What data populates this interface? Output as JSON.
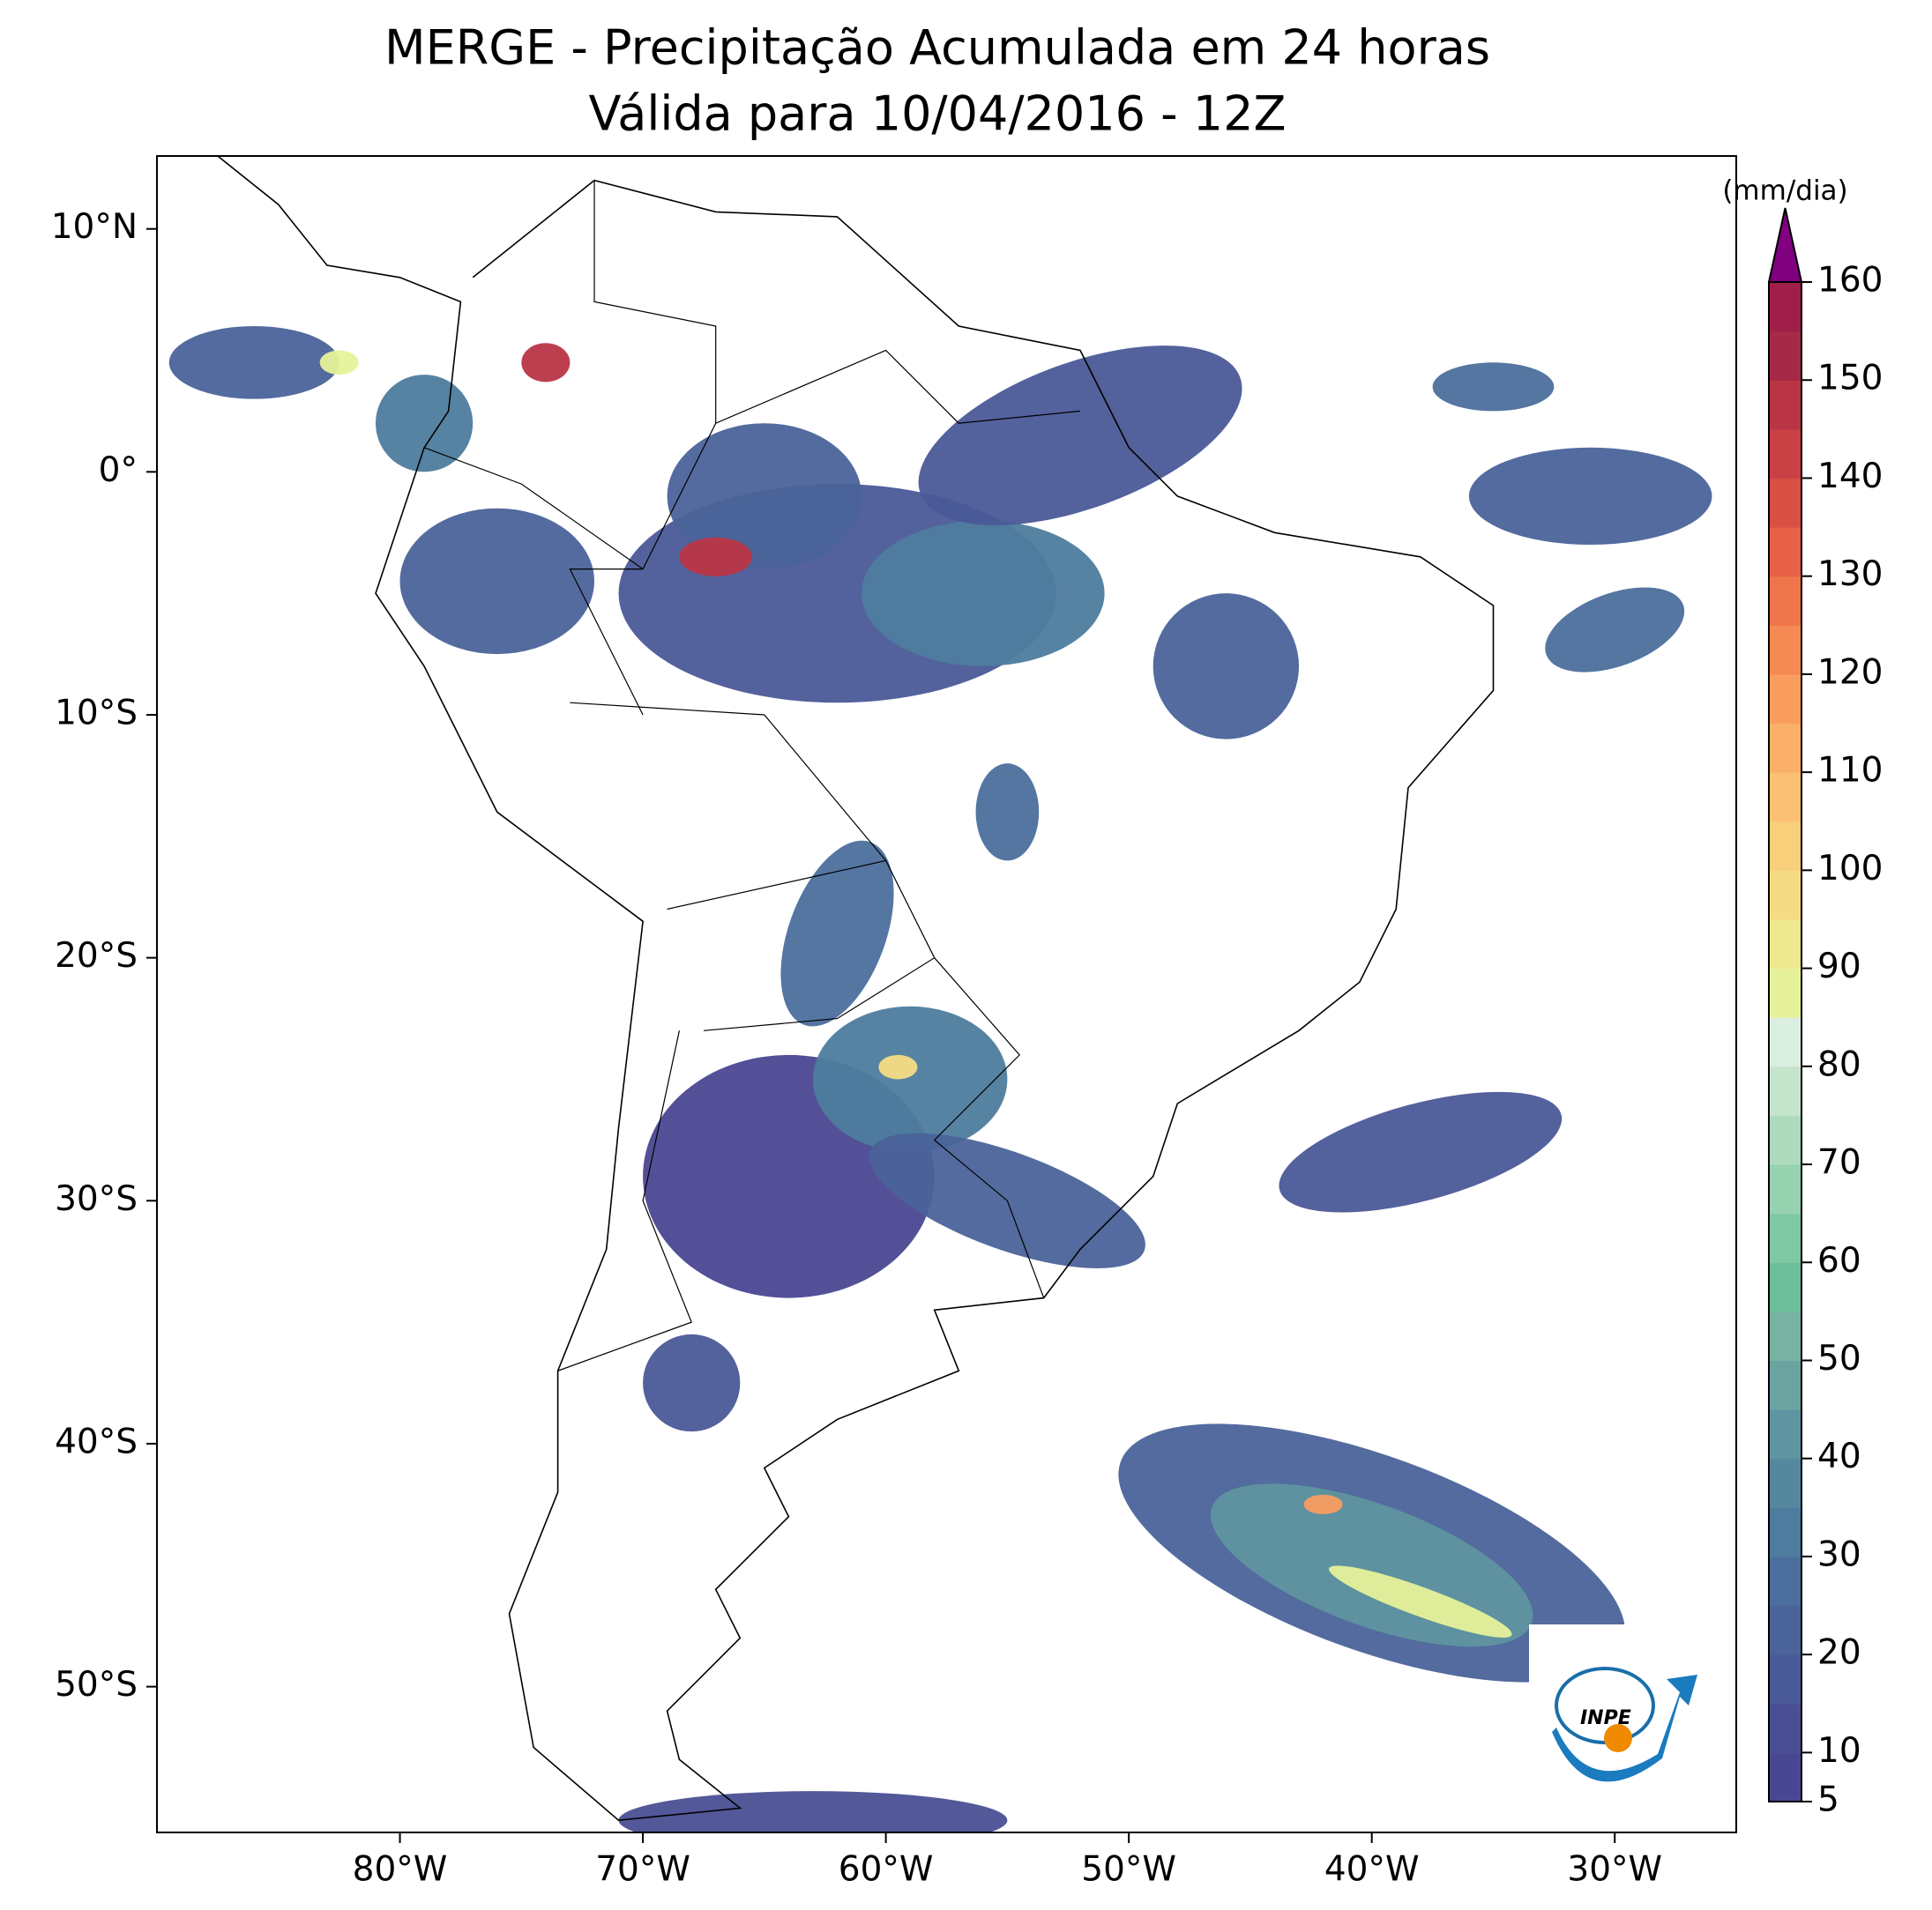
{
  "chart_data": {
    "type": "map",
    "title": "MERGE - Precipitação Acumulada em 24 horas",
    "subtitle": "Válida para 10/04/2016 - 12Z",
    "xlim": [
      -90,
      -25
    ],
    "ylim": [
      -56,
      13
    ],
    "xticks": [
      {
        "value": -80,
        "label": "80°W"
      },
      {
        "value": -70,
        "label": "70°W"
      },
      {
        "value": -60,
        "label": "60°W"
      },
      {
        "value": -50,
        "label": "50°W"
      },
      {
        "value": -40,
        "label": "40°W"
      },
      {
        "value": -30,
        "label": "30°W"
      }
    ],
    "yticks": [
      {
        "value": 10,
        "label": "10°N"
      },
      {
        "value": 0,
        "label": "0°"
      },
      {
        "value": -10,
        "label": "10°S"
      },
      {
        "value": -20,
        "label": "20°S"
      },
      {
        "value": -30,
        "label": "30°S"
      },
      {
        "value": -40,
        "label": "40°S"
      },
      {
        "value": -50,
        "label": "50°S"
      }
    ],
    "colorbar": {
      "label": "(mm/dia)",
      "range": [
        5,
        160
      ],
      "ticks": [
        5,
        10,
        20,
        30,
        40,
        50,
        60,
        70,
        80,
        90,
        100,
        110,
        120,
        130,
        140,
        150,
        160
      ],
      "colors": [
        "#4a4792",
        "#4a4f94",
        "#4a5997",
        "#4a6399",
        "#4b6f9c",
        "#4e7c9e",
        "#55889f",
        "#5f95a0",
        "#6ba3a1",
        "#78b2a2",
        "#6cbf9a",
        "#80c8a4",
        "#96d1b0",
        "#aedbbe",
        "#c5e4cc",
        "#dbeee2",
        "#e6f29a",
        "#eee88f",
        "#f5dc84",
        "#f8d07b",
        "#fbc073",
        "#fbb06a",
        "#f99d5f",
        "#f58a54",
        "#ef754b",
        "#e66145",
        "#d94f44",
        "#ca4145",
        "#b93546",
        "#a62947",
        "#a01f4a"
      ],
      "extend_color": "#800080"
    },
    "logo": "INPE"
  }
}
